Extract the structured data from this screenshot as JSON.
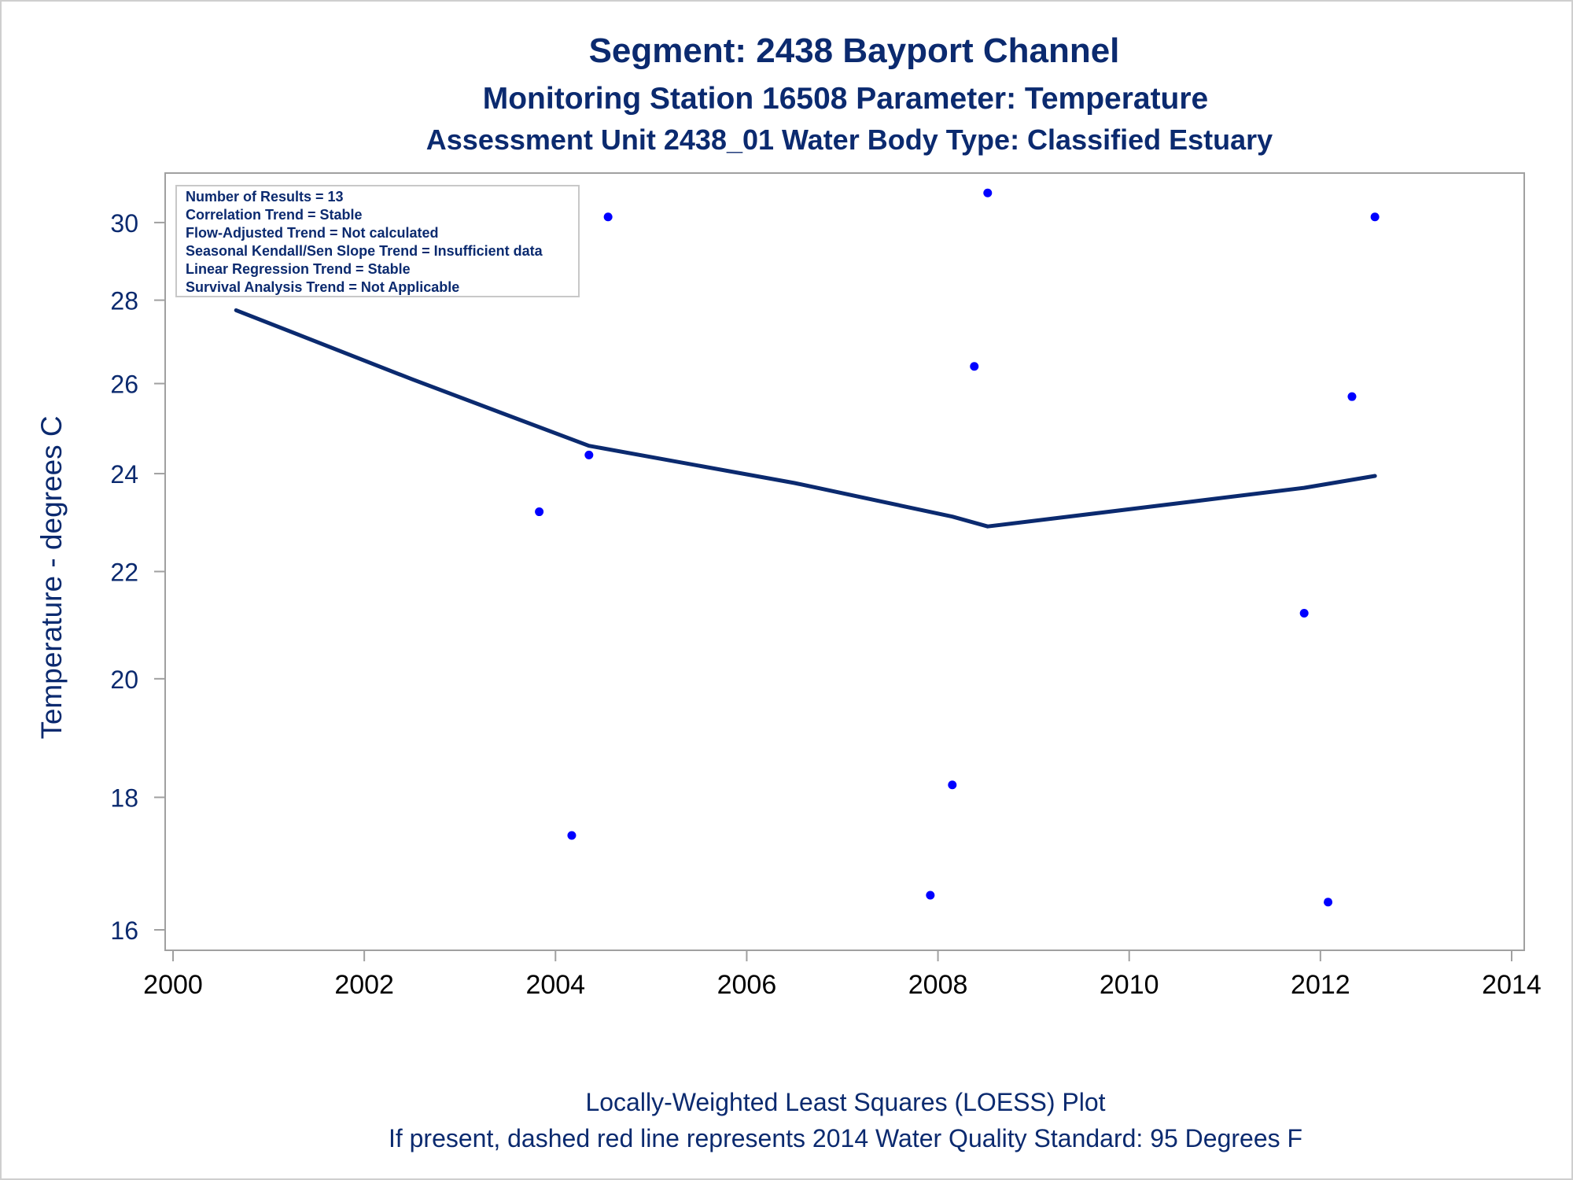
{
  "titles": {
    "line1": "Segment: 2438  Bayport Channel",
    "line2": "Monitoring Station 16508 Parameter: Temperature",
    "line3": "Assessment Unit 2438_01   Water Body Type: Classified Estuary"
  },
  "stats_box": [
    "Number of Results = 13",
    "Correlation Trend = Stable",
    "Flow-Adjusted Trend = Not calculated",
    "Seasonal Kendall/Sen Slope Trend = Insufficient data",
    "Linear Regression Trend = Stable",
    "Survival Analysis Trend = Not Applicable"
  ],
  "footnotes": {
    "line1": "Locally-Weighted Least Squares (LOESS) Plot",
    "line2": "If present, dashed red line represents 2014 Water Quality Standard: 95   Degrees F"
  },
  "colors": {
    "title": "#0b2a6f",
    "points": "#0000ff",
    "loess": "#0b2a6f",
    "frame": "#a0a0a0"
  },
  "chart_data": {
    "type": "scatter",
    "xlabel": "",
    "ylabel": "Temperature - degrees C",
    "xlim": [
      2000,
      2014
    ],
    "ylim": [
      15.8,
      31
    ],
    "y_scale": "log",
    "x_ticks": [
      2000,
      2002,
      2004,
      2006,
      2008,
      2010,
      2012,
      2014
    ],
    "y_ticks": [
      16,
      18,
      20,
      22,
      24,
      26,
      28,
      30
    ],
    "grid": false,
    "series": [
      {
        "kind": "points",
        "points": [
          {
            "x": 2000.66,
            "y": 30.4
          },
          {
            "x": 2003.83,
            "y": 23.2
          },
          {
            "x": 2004.17,
            "y": 17.4
          },
          {
            "x": 2004.35,
            "y": 24.4
          },
          {
            "x": 2004.55,
            "y": 30.15
          },
          {
            "x": 2007.92,
            "y": 16.5
          },
          {
            "x": 2008.15,
            "y": 18.2
          },
          {
            "x": 2008.38,
            "y": 26.4
          },
          {
            "x": 2008.52,
            "y": 30.8
          },
          {
            "x": 2011.83,
            "y": 21.2
          },
          {
            "x": 2012.08,
            "y": 16.4
          },
          {
            "x": 2012.33,
            "y": 25.7
          },
          {
            "x": 2012.57,
            "y": 30.15
          }
        ]
      },
      {
        "kind": "loess",
        "points": [
          {
            "x": 2000.66,
            "y": 27.75
          },
          {
            "x": 2002.5,
            "y": 26.1
          },
          {
            "x": 2004.35,
            "y": 24.6
          },
          {
            "x": 2006.5,
            "y": 23.8
          },
          {
            "x": 2008.15,
            "y": 23.1
          },
          {
            "x": 2008.52,
            "y": 22.9
          },
          {
            "x": 2010.2,
            "y": 23.3
          },
          {
            "x": 2011.83,
            "y": 23.7
          },
          {
            "x": 2012.57,
            "y": 23.95
          }
        ]
      }
    ]
  }
}
